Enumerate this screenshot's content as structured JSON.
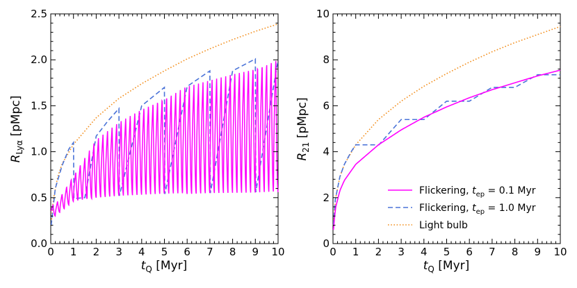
{
  "chart_data": [
    {
      "type": "line",
      "panel": "left",
      "xlabel": "t_Q [Myr]",
      "ylabel": "R_Lyα [pMpc]",
      "xlim": [
        0,
        10
      ],
      "ylim": [
        0,
        2.5
      ],
      "xticks": [
        "0",
        "1",
        "2",
        "3",
        "4",
        "5",
        "6",
        "7",
        "8",
        "9",
        "10"
      ],
      "yticks": [
        "0.0",
        "0.5",
        "1.0",
        "1.5",
        "2.0",
        "2.5"
      ],
      "series": [
        {
          "name": "Light bulb",
          "style": "dotted",
          "color": "#f28e1c",
          "x": [
            0.02,
            0.1,
            0.3,
            0.5,
            1,
            2,
            3,
            4,
            5,
            6,
            7,
            8,
            9,
            10
          ],
          "y": [
            0.2,
            0.46,
            0.72,
            0.87,
            1.08,
            1.37,
            1.58,
            1.74,
            1.88,
            2.01,
            2.12,
            2.22,
            2.31,
            2.39
          ]
        },
        {
          "name": "Flickering, t_ep = 1.0 Myr",
          "style": "dashed",
          "color": "#4a73d8",
          "x": [
            0.02,
            0.2,
            0.5,
            0.8,
            1.0,
            1.02,
            1.5,
            2.0,
            2.5,
            3.0,
            3.02,
            4.0,
            5.0,
            5.02,
            6.0,
            7.0,
            7.02,
            8.0,
            9.0,
            9.02,
            10.0
          ],
          "y": [
            0.2,
            0.6,
            0.85,
            1.03,
            1.1,
            0.49,
            0.5,
            1.17,
            1.33,
            1.47,
            0.52,
            1.5,
            1.7,
            0.54,
            1.71,
            1.88,
            0.55,
            1.88,
            2.01,
            0.56,
            2.0
          ]
        },
        {
          "name": "Flickering, t_ep = 0.1 Myr",
          "style": "solid",
          "color": "#ff00ff",
          "period": 0.2,
          "envelope_top_x": [
            0.2,
            1,
            2,
            3,
            4,
            5,
            6,
            7,
            8,
            9,
            10
          ],
          "envelope_top_y": [
            0.42,
            0.74,
            1.13,
            1.33,
            1.48,
            1.6,
            1.71,
            1.79,
            1.87,
            1.94,
            2.0
          ],
          "envelope_bottom_x": [
            0.2,
            1,
            2,
            3,
            4,
            5,
            6,
            7,
            8,
            9,
            10
          ],
          "envelope_bottom_y": [
            0.3,
            0.46,
            0.5,
            0.52,
            0.53,
            0.54,
            0.54,
            0.55,
            0.55,
            0.55,
            0.56
          ]
        }
      ]
    },
    {
      "type": "line",
      "panel": "right",
      "xlabel": "t_Q [Myr]",
      "ylabel": "R_21 [pMpc]",
      "xlim": [
        0,
        10
      ],
      "ylim": [
        0,
        10
      ],
      "xticks": [
        "0",
        "1",
        "2",
        "3",
        "4",
        "5",
        "6",
        "7",
        "8",
        "9",
        "10"
      ],
      "yticks": [
        "0",
        "2",
        "4",
        "6",
        "8",
        "10"
      ],
      "legend": {
        "placement": "lower-right",
        "entries": [
          {
            "label": "Flickering, ",
            "sym": "t",
            "sub": "ep",
            "value": " = 0.1 Myr",
            "color": "#ff00ff",
            "style": "solid"
          },
          {
            "label": "Flickering, ",
            "sym": "t",
            "sub": "ep",
            "value": " = 1.0 Myr",
            "color": "#4a73d8",
            "style": "dashed"
          },
          {
            "label": "Light bulb",
            "sym": "",
            "sub": "",
            "value": "",
            "color": "#f28e1c",
            "style": "dotted"
          }
        ]
      },
      "series": [
        {
          "name": "Light bulb",
          "style": "dotted",
          "color": "#f28e1c",
          "x": [
            0.02,
            0.1,
            0.3,
            0.5,
            1,
            2,
            3,
            4,
            5,
            6,
            7,
            8,
            9,
            10
          ],
          "y": [
            0.8,
            1.9,
            2.9,
            3.45,
            4.3,
            5.4,
            6.2,
            6.85,
            7.4,
            7.9,
            8.35,
            8.75,
            9.1,
            9.45
          ]
        },
        {
          "name": "Flickering, t_ep = 1.0 Myr",
          "style": "dashed",
          "color": "#4a73d8",
          "x": [
            0.02,
            0.1,
            0.3,
            0.5,
            0.8,
            1.0,
            2.0,
            2.02,
            3.0,
            3.02,
            4.0,
            5.0,
            5.02,
            6.0,
            7.0,
            7.02,
            8.0,
            9.0,
            9.02,
            10.0
          ],
          "y": [
            0.8,
            1.9,
            2.9,
            3.45,
            4.0,
            4.3,
            4.3,
            4.3,
            5.4,
            5.4,
            5.4,
            6.2,
            6.2,
            6.2,
            6.8,
            6.8,
            6.8,
            7.35,
            7.35,
            7.35
          ]
        },
        {
          "name": "Flickering, t_ep = 0.1 Myr",
          "style": "solid",
          "color": "#ff00ff",
          "x": [
            0.02,
            0.1,
            0.3,
            0.5,
            1,
            2,
            3,
            4,
            5,
            6,
            7,
            8,
            9,
            10
          ],
          "y": [
            0.6,
            1.5,
            2.3,
            2.75,
            3.45,
            4.3,
            4.95,
            5.5,
            5.95,
            6.35,
            6.7,
            7.0,
            7.3,
            7.55
          ]
        }
      ]
    }
  ]
}
